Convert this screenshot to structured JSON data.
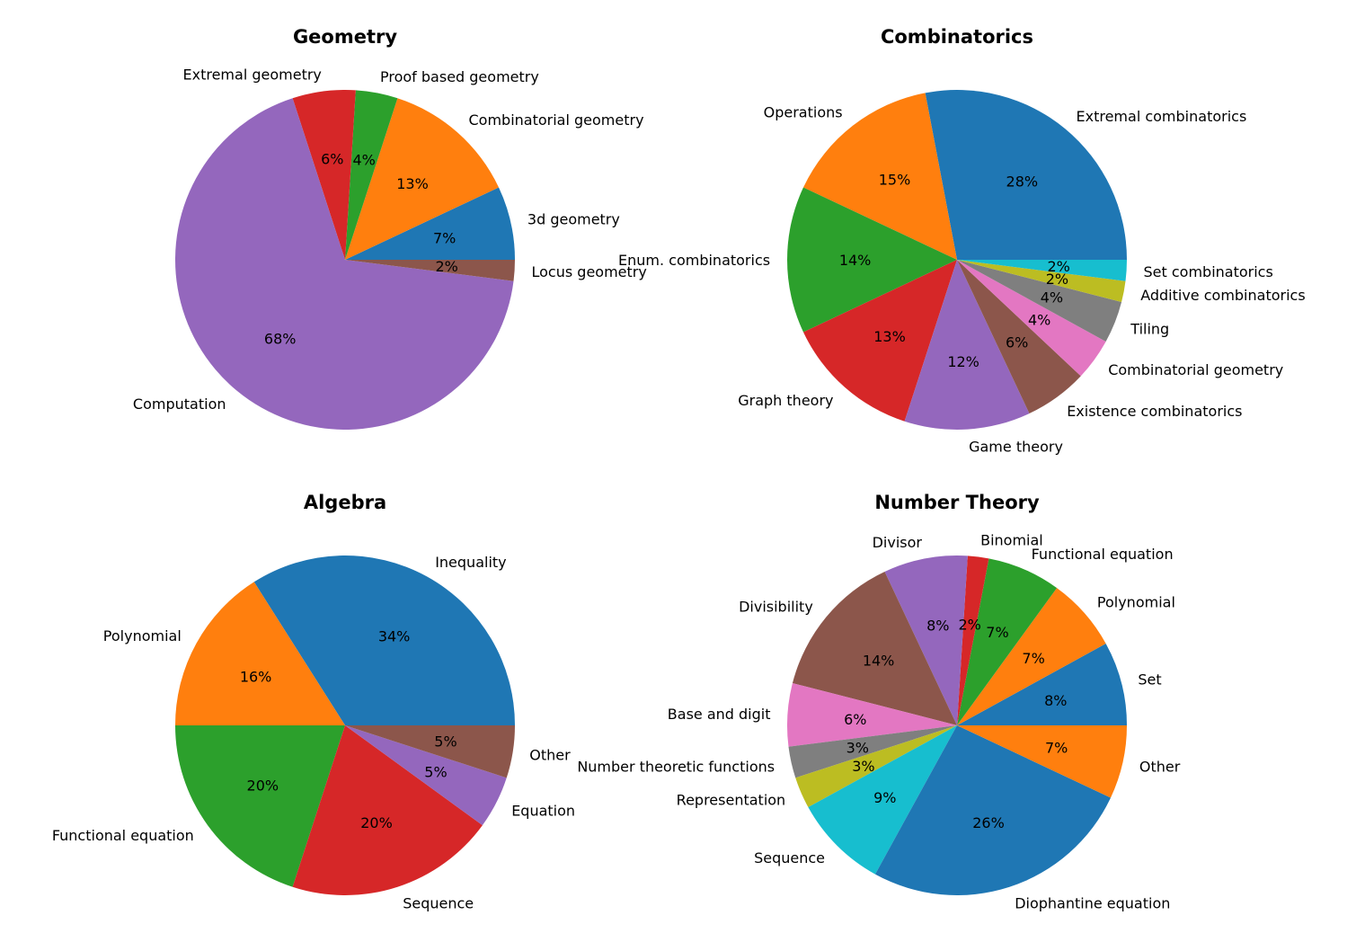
{
  "chart_data": [
    {
      "type": "pie",
      "title": "Geometry",
      "start_angle_deg": 0,
      "direction": "counterclockwise",
      "labels": [
        "3d geometry",
        "Combinatorial geometry",
        "Proof based geometry",
        "Extremal geometry",
        "Computation",
        "Locus geometry"
      ],
      "values": [
        7,
        13,
        4,
        6,
        68,
        2
      ],
      "pct_labels": [
        "7%",
        "13%",
        "4%",
        "6%",
        "68%",
        "2%"
      ],
      "colors": [
        "#1f77b4",
        "#ff7f0e",
        "#2ca02c",
        "#d62728",
        "#9467bd",
        "#8c564b"
      ]
    },
    {
      "type": "pie",
      "title": "Combinatorics",
      "start_angle_deg": 0,
      "direction": "counterclockwise",
      "labels": [
        "Extremal combinatorics",
        "Operations",
        "Enum. combinatorics",
        "Graph theory",
        "Game theory",
        "Existence combinatorics",
        "Combinatorial geometry",
        "Tiling",
        "Additive combinatorics",
        "Set combinatorics"
      ],
      "values": [
        28,
        15,
        14,
        13,
        12,
        6,
        4,
        4,
        2,
        2
      ],
      "pct_labels": [
        "28%",
        "15%",
        "14%",
        "13%",
        "12%",
        "6%",
        "4%",
        "4%",
        "2%",
        "2%"
      ],
      "colors": [
        "#1f77b4",
        "#ff7f0e",
        "#2ca02c",
        "#d62728",
        "#9467bd",
        "#8c564b",
        "#e377c2",
        "#7f7f7f",
        "#bcbd22",
        "#17becf"
      ]
    },
    {
      "type": "pie",
      "title": "Algebra",
      "start_angle_deg": 0,
      "direction": "counterclockwise",
      "labels": [
        "Inequality",
        "Polynomial",
        "Functional equation",
        "Sequence",
        "Equation",
        "Other"
      ],
      "values": [
        34,
        16,
        20,
        20,
        5,
        5
      ],
      "pct_labels": [
        "34%",
        "16%",
        "20%",
        "20%",
        "5%",
        "5%"
      ],
      "colors": [
        "#1f77b4",
        "#ff7f0e",
        "#2ca02c",
        "#d62728",
        "#9467bd",
        "#8c564b"
      ]
    },
    {
      "type": "pie",
      "title": "Number Theory",
      "start_angle_deg": 0,
      "direction": "counterclockwise",
      "labels": [
        "Set",
        "Polynomial",
        "Functional equation",
        "Binomial",
        "Divisor",
        "Divisibility",
        "Base and digit",
        "Number theoretic functions",
        "Representation",
        "Sequence",
        "Diophantine equation",
        "Other"
      ],
      "values": [
        8,
        7,
        7,
        2,
        8,
        14,
        6,
        3,
        3,
        9,
        26,
        7
      ],
      "pct_labels": [
        "8%",
        "7%",
        "7%",
        "2%",
        "8%",
        "14%",
        "6%",
        "3%",
        "3%",
        "9%",
        "26%",
        "7%"
      ],
      "colors": [
        "#1f77b4",
        "#ff7f0e",
        "#2ca02c",
        "#d62728",
        "#9467bd",
        "#8c564b",
        "#e377c2",
        "#7f7f7f",
        "#bcbd22",
        "#17becf",
        "#1f77b4",
        "#ff7f0e"
      ]
    }
  ]
}
